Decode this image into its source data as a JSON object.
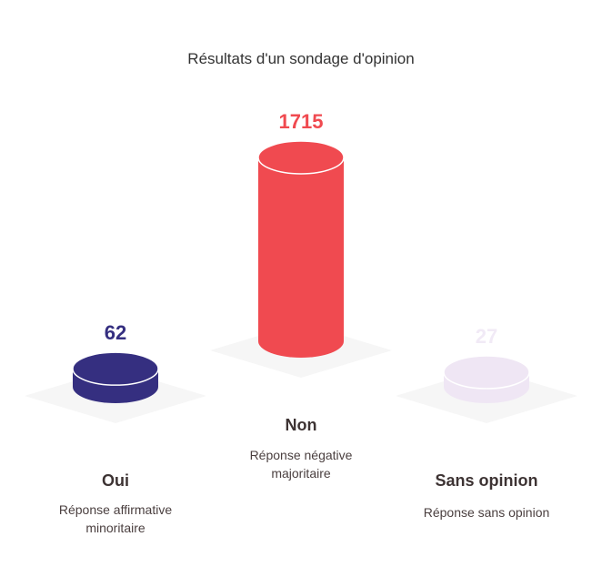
{
  "chart_data": {
    "type": "bar",
    "title": "Résultats d'un sondage d'opinion",
    "categories": [
      "Oui",
      "Non",
      "Sans opinion"
    ],
    "values": [
      62,
      1715,
      27
    ],
    "descriptions": [
      [
        "Réponse affirmative",
        "minoritaire"
      ],
      [
        "Réponse négative",
        "majoritaire"
      ],
      [
        "Réponse sans opinion"
      ]
    ],
    "colors": [
      "#352f80",
      "#f04a50",
      "#efe6f4"
    ],
    "value_colors": [
      "#352f80",
      "#f04a50",
      "#f1eaf6"
    ],
    "xlabel": "",
    "ylabel": "",
    "grid": false,
    "legend": "none"
  }
}
